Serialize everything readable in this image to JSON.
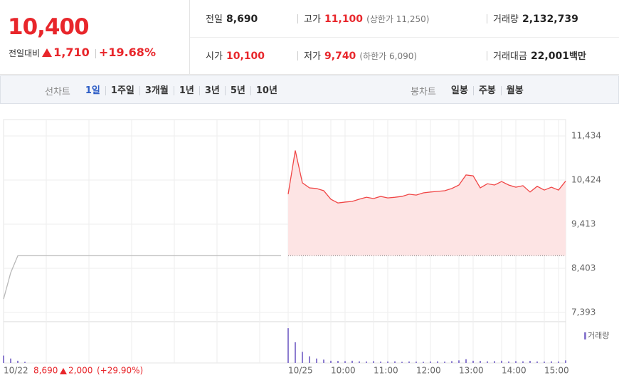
{
  "quote": {
    "price": "10,400",
    "change_label": "전일대비",
    "change": "1,710",
    "change_rate": "+19.68%"
  },
  "stats": [
    {
      "label": "전일",
      "value": "8,690"
    },
    {
      "label": "고가",
      "value": "11,100",
      "note": "(상한가 11,250)"
    },
    {
      "label": "거래량",
      "value": "2,132,739"
    },
    {
      "label": "시가",
      "value": "10,100"
    },
    {
      "label": "저가",
      "value": "9,740",
      "note": "(하한가 6,090)"
    },
    {
      "label": "거래대금",
      "value": "22,001",
      "unit": "백만"
    }
  ],
  "tabs": {
    "line_label": "선차트",
    "line": [
      "1일",
      "1주일",
      "3개월",
      "1년",
      "3년",
      "5년",
      "10년"
    ],
    "candle_label": "봉차트",
    "candle": [
      "일봉",
      "주봉",
      "월봉"
    ]
  },
  "chart_data": [
    {
      "type": "line",
      "categories": [
        "10/22",
        null,
        null,
        null,
        null,
        null,
        null,
        null,
        null,
        null,
        null,
        null,
        null,
        null,
        null,
        null,
        null,
        null,
        null,
        null,
        null,
        null,
        null,
        null,
        null,
        null,
        null,
        null,
        null,
        null,
        null,
        null,
        null,
        null,
        null,
        null,
        null,
        null,
        null,
        null,
        "10/25",
        null,
        null,
        null,
        null,
        null,
        "10:00",
        null,
        null,
        null,
        null,
        null,
        "11:00",
        null,
        null,
        null,
        null,
        null,
        "12:00",
        null,
        null,
        null,
        null,
        null,
        "13:00",
        null,
        null,
        null,
        null,
        null,
        "14:00",
        null,
        null,
        null,
        null,
        null,
        "15:00",
        null,
        null,
        null
      ],
      "series": [
        {
          "color": "#b8b8b8",
          "values": [
            7700,
            8300,
            8690,
            8690,
            8690,
            8690,
            8690,
            8690,
            8690,
            8690,
            8690,
            8690,
            8690,
            8690,
            8690,
            8690,
            8690,
            8690,
            8690,
            8690,
            8690,
            8690,
            8690,
            8690,
            8690,
            8690,
            8690,
            8690,
            8690,
            8690,
            8690,
            8690,
            8690,
            8690,
            8690,
            8690,
            8690,
            8690,
            8690,
            8690,
            null,
            null,
            null,
            null,
            null,
            null,
            null,
            null,
            null,
            null,
            null,
            null,
            null,
            null,
            null,
            null,
            null,
            null,
            null,
            null,
            null,
            null,
            null,
            null,
            null,
            null,
            null,
            null,
            null,
            null,
            null,
            null,
            null,
            null,
            null,
            null,
            null,
            null,
            null,
            null
          ]
        },
        {
          "color": "#f04646",
          "fill": "#fde4e4",
          "values": [
            null,
            null,
            null,
            null,
            null,
            null,
            null,
            null,
            null,
            null,
            null,
            null,
            null,
            null,
            null,
            null,
            null,
            null,
            null,
            null,
            null,
            null,
            null,
            null,
            null,
            null,
            null,
            null,
            null,
            null,
            null,
            null,
            null,
            null,
            null,
            null,
            null,
            null,
            null,
            null,
            10100,
            11100,
            10360,
            10245,
            10230,
            10180,
            9985,
            9900,
            9920,
            9935,
            9985,
            10030,
            10000,
            10050,
            10015,
            10030,
            10050,
            10100,
            10080,
            10130,
            10150,
            10165,
            10180,
            10230,
            10310,
            10540,
            10520,
            10245,
            10340,
            10310,
            10390,
            10310,
            10260,
            10295,
            10150,
            10280,
            10195,
            10260,
            10195,
            10400
          ]
        }
      ],
      "ylim": [
        7181,
        11809
      ],
      "yticks": [
        {
          "value": 7393,
          "label": "7,393"
        },
        {
          "value": 8403,
          "label": "8,403"
        },
        {
          "value": 9413,
          "label": "9,413"
        },
        {
          "value": 10424,
          "label": "10,424"
        },
        {
          "value": 11434,
          "label": "11,434"
        }
      ],
      "grid": true,
      "baseline": 8690
    },
    {
      "type": "bar",
      "series": [
        {
          "name": "거래량",
          "color": "#8c7ccf",
          "values": [
            100000,
            60000,
            30000,
            15000,
            null,
            null,
            null,
            null,
            null,
            null,
            null,
            null,
            null,
            null,
            null,
            null,
            null,
            null,
            null,
            null,
            null,
            null,
            null,
            null,
            null,
            null,
            null,
            null,
            null,
            null,
            null,
            null,
            null,
            null,
            null,
            null,
            null,
            null,
            null,
            null,
            470000,
            280000,
            150000,
            90000,
            60000,
            45000,
            30000,
            28000,
            25000,
            30000,
            22000,
            20000,
            25000,
            18000,
            20000,
            22000,
            15000,
            20000,
            18000,
            15000,
            20000,
            22000,
            18000,
            25000,
            35000,
            50000,
            30000,
            28000,
            22000,
            25000,
            30000,
            20000,
            25000,
            22000,
            28000,
            20000,
            18000,
            22000,
            20000,
            35000
          ]
        }
      ],
      "ylim": [
        0,
        500000
      ]
    }
  ],
  "footer": {
    "close": "8,690",
    "change": "2,000",
    "change_rate": "(+29.90%)"
  }
}
